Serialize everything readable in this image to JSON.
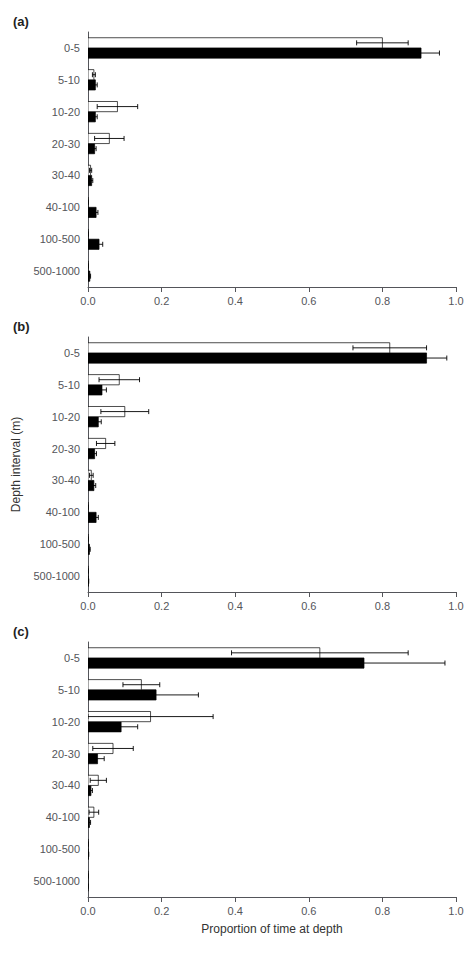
{
  "chart_data": [
    {
      "type": "bar",
      "orientation": "horizontal",
      "title": "(a)",
      "categories": [
        "0-5",
        "5-10",
        "10-20",
        "20-30",
        "30-40",
        "40-100",
        "100-500",
        "500-1000"
      ],
      "series": [
        {
          "color": "#000000",
          "values": [
            0.905,
            0.02,
            0.02,
            0.018,
            0.01,
            0.022,
            0.03,
            0.005
          ],
          "errors": [
            0.05,
            0.005,
            0.005,
            0.004,
            0.003,
            0.005,
            0.01,
            0.002
          ]
        },
        {
          "color": "#ffffff",
          "values": [
            0.8,
            0.016,
            0.08,
            0.058,
            0.007,
            0.0,
            0.0,
            0.0
          ],
          "errors": [
            0.07,
            0.004,
            0.055,
            0.04,
            0.003,
            0.0,
            0.0,
            0.0
          ]
        }
      ],
      "xlim": [
        0,
        1.0
      ],
      "xticks": [
        {
          "value": 0.0,
          "label": "0.0"
        },
        0.2,
        0.4,
        0.6,
        0.8,
        {
          "value": 1.0,
          "label": "1.0"
        }
      ],
      "grid": false
    },
    {
      "type": "bar",
      "orientation": "horizontal",
      "title": "(b)",
      "ylabel": "Depth interval (m)",
      "categories": [
        "0-5",
        "5-10",
        "10-20",
        "20-30",
        "30-40",
        "40-100",
        "100-500",
        "500-1000"
      ],
      "series": [
        {
          "color": "#000000",
          "values": [
            0.92,
            0.038,
            0.028,
            0.018,
            0.016,
            0.022,
            0.004,
            0.001
          ],
          "errors": [
            0.055,
            0.012,
            0.008,
            0.005,
            0.005,
            0.006,
            0.002,
            0.001
          ]
        },
        {
          "color": "#ffffff",
          "values": [
            0.82,
            0.085,
            0.1,
            0.048,
            0.009,
            0.0,
            0.0,
            0.0
          ],
          "errors": [
            0.1,
            0.055,
            0.065,
            0.025,
            0.005,
            0.0,
            0.0,
            0.0
          ]
        }
      ],
      "xlim": [
        0,
        1.0
      ],
      "xticks": [
        {
          "value": 0.0,
          "label": "0.0"
        },
        0.2,
        0.4,
        0.6,
        0.8,
        {
          "value": 1.0,
          "label": "1.0"
        }
      ],
      "grid": false
    },
    {
      "type": "bar",
      "orientation": "horizontal",
      "title": "(c)",
      "xlabel": "Proportion of time at depth",
      "categories": [
        "0-5",
        "5-10",
        "10-20",
        "20-30",
        "30-40",
        "40-100",
        "100-500",
        "500-1000"
      ],
      "series": [
        {
          "color": "#000000",
          "values": [
            0.75,
            0.185,
            0.09,
            0.026,
            0.008,
            0.004,
            0.001,
            0.0
          ],
          "errors": [
            0.22,
            0.115,
            0.045,
            0.018,
            0.004,
            0.003,
            0.001,
            0.0
          ]
        },
        {
          "color": "#ffffff",
          "values": [
            0.63,
            0.145,
            0.17,
            0.068,
            0.028,
            0.016,
            0.0,
            0.0
          ],
          "errors": [
            0.24,
            0.05,
            0.17,
            0.055,
            0.022,
            0.013,
            0.0,
            0.0
          ]
        }
      ],
      "xlim": [
        0,
        1.0
      ],
      "xticks": [
        {
          "value": 0.0,
          "label": "0.0"
        },
        0.2,
        0.4,
        0.6,
        0.8,
        {
          "value": 1.0,
          "label": "1.0"
        }
      ],
      "grid": false
    }
  ]
}
